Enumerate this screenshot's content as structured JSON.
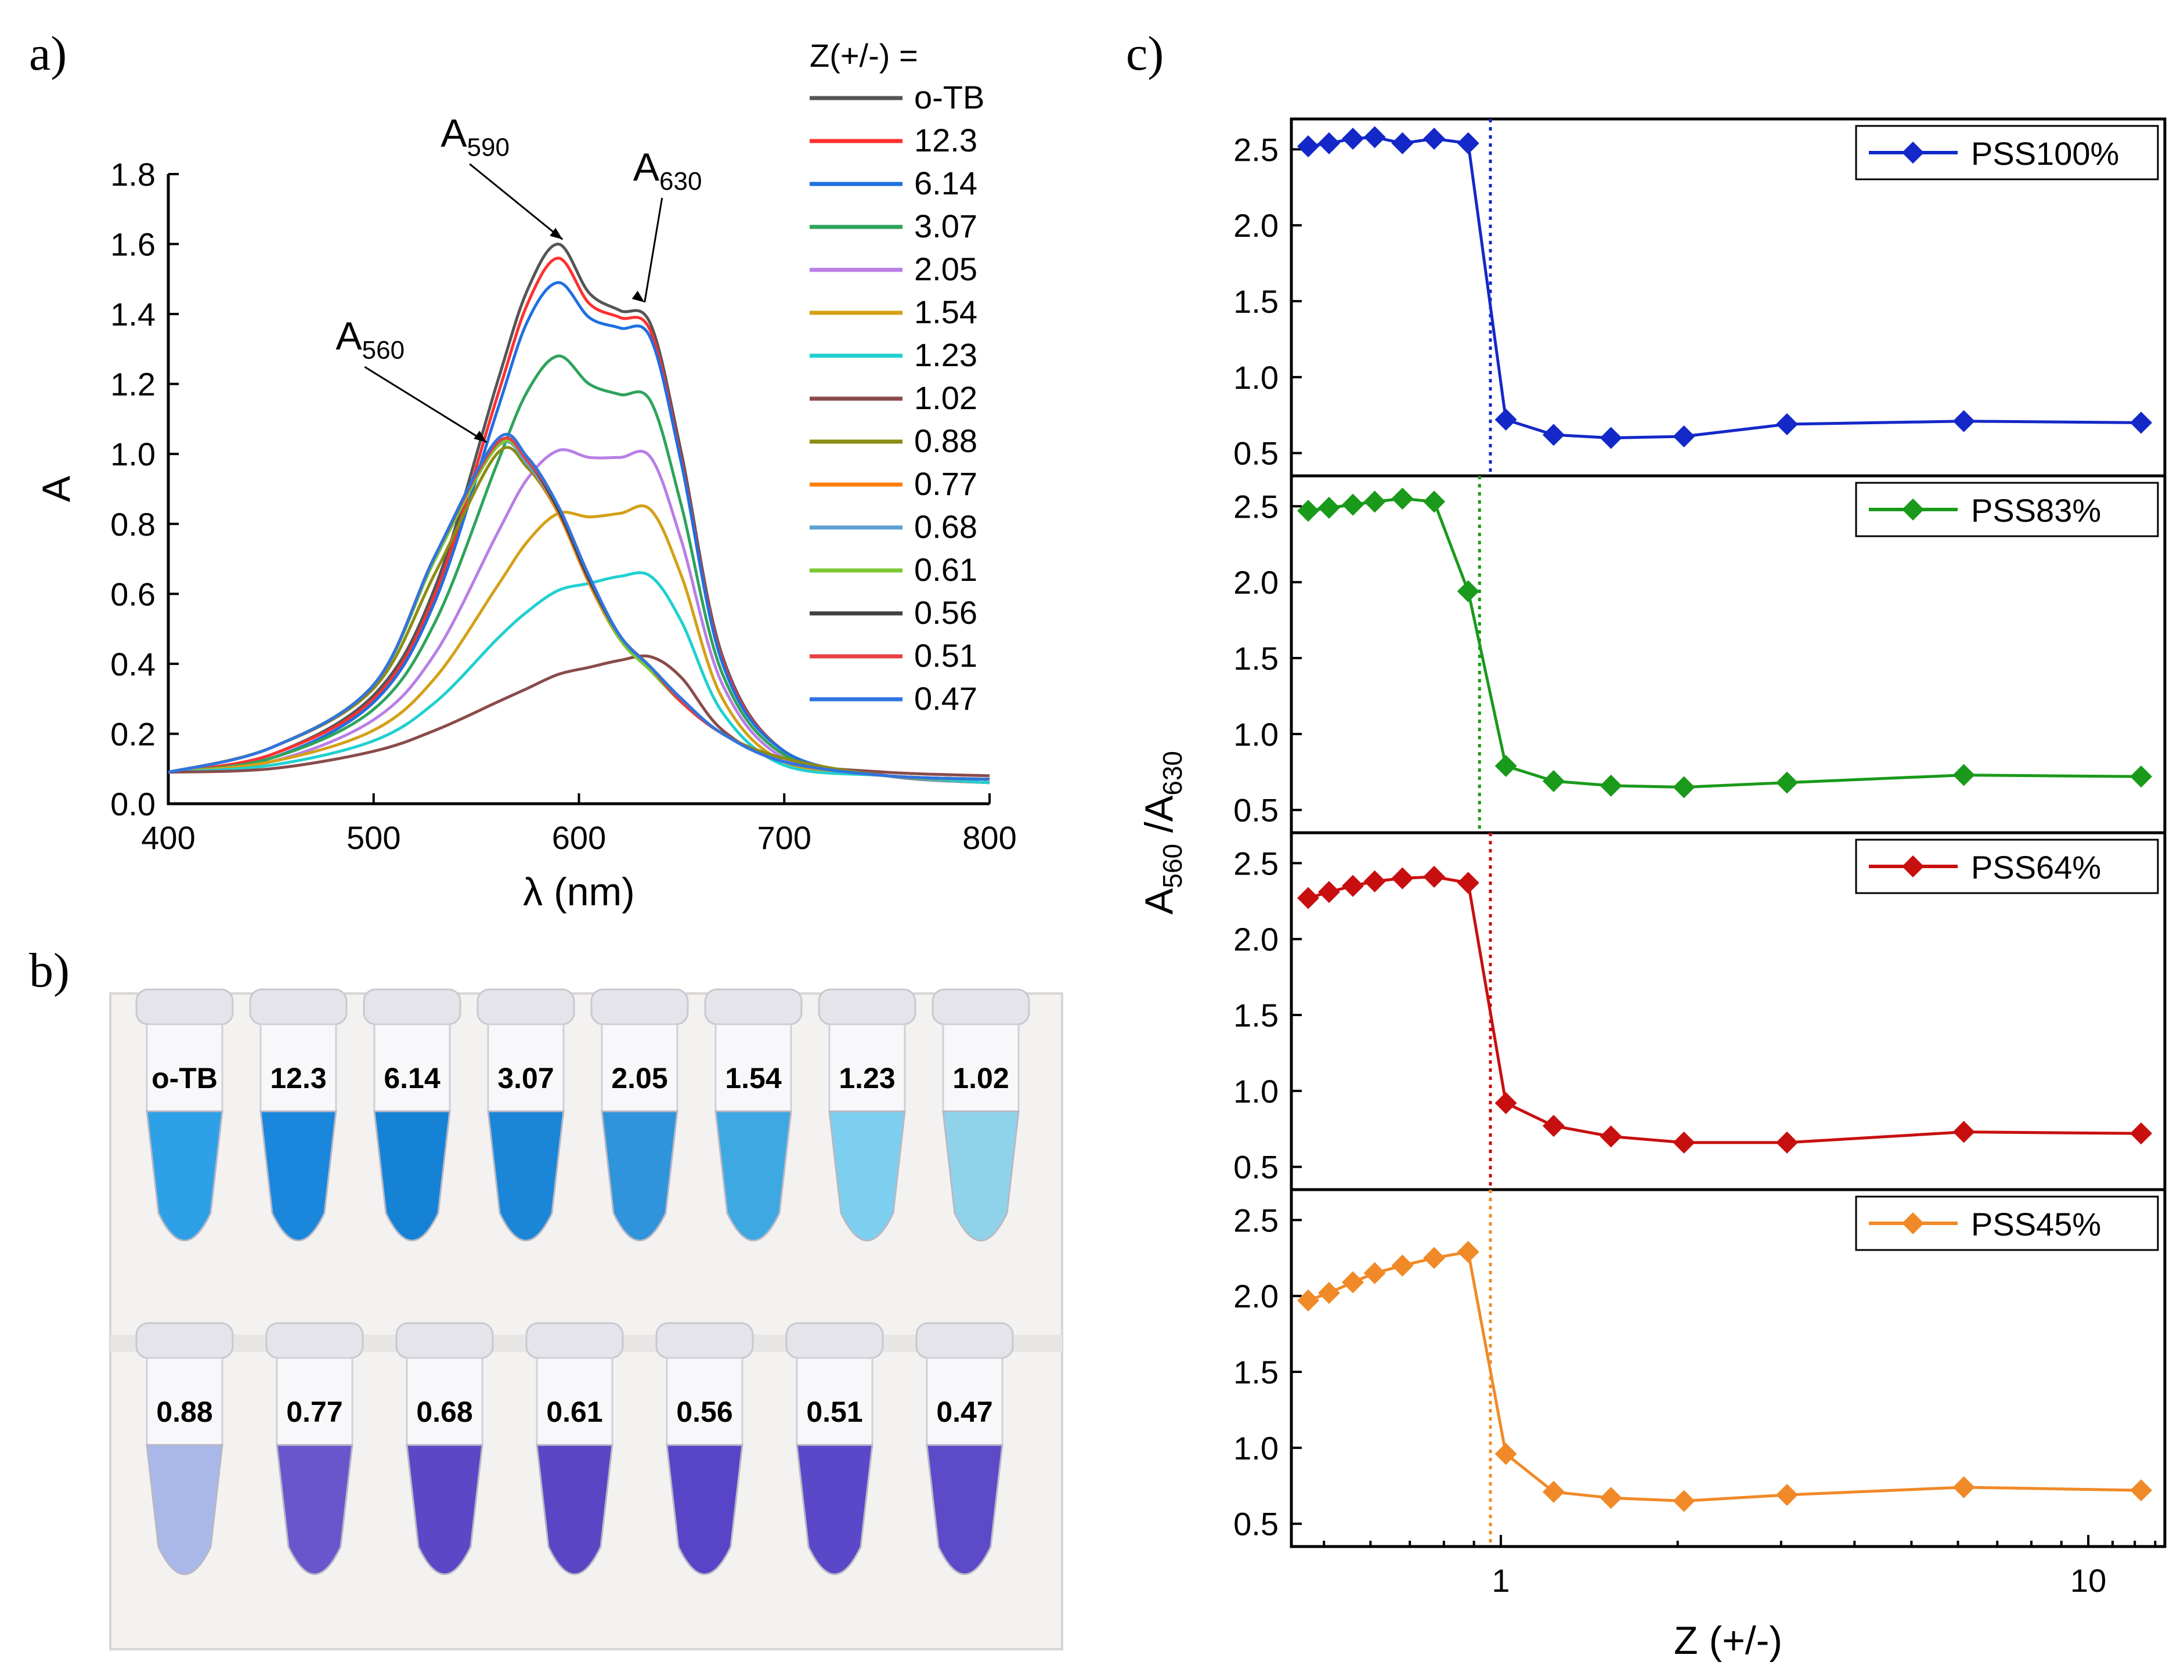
{
  "panel_labels": {
    "a": "a)",
    "b": "b)",
    "c": "c)"
  },
  "chart_data": [
    {
      "type": "line",
      "panel": "a",
      "title": "",
      "xlabel": "λ (nm)",
      "ylabel": "A",
      "xlim": [
        400,
        800
      ],
      "ylim": [
        0,
        1.8
      ],
      "xticks": [
        400,
        500,
        600,
        700,
        800
      ],
      "yticks": [
        0.0,
        0.2,
        0.4,
        0.6,
        0.8,
        1.0,
        1.2,
        1.4,
        1.6,
        1.8
      ],
      "legend_title": "Z(+/-) =",
      "legend_position": "top-right",
      "annotations": [
        {
          "base": "A",
          "sub": "590",
          "at": [
            592,
            1.6
          ]
        },
        {
          "base": "A",
          "sub": "630",
          "at": [
            632,
            1.42
          ]
        },
        {
          "base": "A",
          "sub": "560",
          "at": [
            555,
            1.02
          ]
        }
      ],
      "x": [
        400,
        450,
        500,
        530,
        560,
        575,
        590,
        605,
        620,
        635,
        650,
        670,
        700,
        750,
        800
      ],
      "series": [
        {
          "name": "o-TB",
          "color": "#555555",
          "values": [
            0.09,
            0.14,
            0.31,
            0.62,
            1.2,
            1.47,
            1.6,
            1.46,
            1.41,
            1.37,
            1.0,
            0.42,
            0.15,
            0.08,
            0.06
          ]
        },
        {
          "name": "12.3",
          "color": "#ff3030",
          "values": [
            0.09,
            0.14,
            0.3,
            0.6,
            1.16,
            1.43,
            1.56,
            1.43,
            1.39,
            1.35,
            0.98,
            0.41,
            0.15,
            0.08,
            0.06
          ]
        },
        {
          "name": "6.14",
          "color": "#1f6fe0",
          "values": [
            0.09,
            0.13,
            0.29,
            0.58,
            1.12,
            1.38,
            1.49,
            1.39,
            1.36,
            1.33,
            0.97,
            0.4,
            0.15,
            0.08,
            0.06
          ]
        },
        {
          "name": "3.07",
          "color": "#2ea35c",
          "values": [
            0.09,
            0.13,
            0.27,
            0.52,
            0.97,
            1.18,
            1.28,
            1.2,
            1.17,
            1.15,
            0.85,
            0.37,
            0.14,
            0.08,
            0.06
          ]
        },
        {
          "name": "2.05",
          "color": "#b87ee6",
          "values": [
            0.09,
            0.12,
            0.24,
            0.43,
            0.77,
            0.93,
            1.01,
            0.99,
            0.99,
            0.99,
            0.75,
            0.34,
            0.13,
            0.08,
            0.06
          ]
        },
        {
          "name": "1.54",
          "color": "#d4a017",
          "values": [
            0.09,
            0.12,
            0.21,
            0.36,
            0.62,
            0.75,
            0.83,
            0.82,
            0.83,
            0.84,
            0.65,
            0.3,
            0.12,
            0.08,
            0.06
          ]
        },
        {
          "name": "1.23",
          "color": "#20d0d0",
          "values": [
            0.09,
            0.11,
            0.18,
            0.29,
            0.47,
            0.55,
            0.61,
            0.63,
            0.65,
            0.65,
            0.52,
            0.26,
            0.11,
            0.08,
            0.06
          ]
        },
        {
          "name": "1.02",
          "color": "#8a4b4b",
          "values": [
            0.09,
            0.1,
            0.15,
            0.21,
            0.29,
            0.33,
            0.37,
            0.39,
            0.41,
            0.42,
            0.36,
            0.21,
            0.12,
            0.09,
            0.08
          ]
        },
        {
          "name": "0.88",
          "color": "#8c8c14",
          "values": [
            0.09,
            0.16,
            0.33,
            0.66,
            1.0,
            0.96,
            0.83,
            0.63,
            0.47,
            0.39,
            0.3,
            0.2,
            0.13,
            0.08,
            0.07
          ]
        },
        {
          "name": "0.77",
          "color": "#ff7f0e",
          "values": [
            0.09,
            0.16,
            0.34,
            0.7,
            1.02,
            0.97,
            0.83,
            0.63,
            0.47,
            0.38,
            0.29,
            0.2,
            0.12,
            0.08,
            0.07
          ]
        },
        {
          "name": "0.68",
          "color": "#5fa0d0",
          "values": [
            0.09,
            0.16,
            0.34,
            0.7,
            1.02,
            0.97,
            0.84,
            0.64,
            0.47,
            0.38,
            0.29,
            0.2,
            0.12,
            0.08,
            0.07
          ]
        },
        {
          "name": "0.61",
          "color": "#7cc832",
          "values": [
            0.09,
            0.16,
            0.34,
            0.7,
            1.02,
            0.98,
            0.84,
            0.64,
            0.47,
            0.38,
            0.29,
            0.2,
            0.12,
            0.08,
            0.07
          ]
        },
        {
          "name": "0.56",
          "color": "#404040",
          "values": [
            0.09,
            0.16,
            0.34,
            0.71,
            1.03,
            0.98,
            0.84,
            0.64,
            0.48,
            0.39,
            0.29,
            0.2,
            0.12,
            0.08,
            0.07
          ]
        },
        {
          "name": "0.51",
          "color": "#e84040",
          "values": [
            0.09,
            0.16,
            0.34,
            0.71,
            1.03,
            0.98,
            0.85,
            0.65,
            0.48,
            0.39,
            0.29,
            0.2,
            0.12,
            0.08,
            0.07
          ]
        },
        {
          "name": "0.47",
          "color": "#2f75e0",
          "values": [
            0.09,
            0.16,
            0.34,
            0.71,
            1.04,
            0.99,
            0.85,
            0.65,
            0.48,
            0.39,
            0.3,
            0.2,
            0.12,
            0.08,
            0.07
          ]
        }
      ]
    },
    {
      "type": "line",
      "panel": "c",
      "title": "",
      "xlabel": "Z (+/-)",
      "ylabel": {
        "parts": [
          "A",
          "560",
          " /A",
          "630"
        ]
      },
      "xscale": "log",
      "xlim": [
        0.44,
        13.5
      ],
      "xticks": [
        1,
        10
      ],
      "ylim": [
        0.35,
        2.7
      ],
      "yticks": [
        0.5,
        1.0,
        1.5,
        2.0,
        2.5
      ],
      "legend_position": "top-right",
      "x": [
        0.47,
        0.51,
        0.56,
        0.61,
        0.68,
        0.77,
        0.88,
        1.02,
        1.23,
        1.54,
        2.05,
        3.07,
        6.14,
        12.3
      ],
      "subplots": [
        {
          "name": "PSS100%",
          "color": "#1428c8",
          "vline": 0.96,
          "values": [
            2.52,
            2.54,
            2.57,
            2.58,
            2.54,
            2.57,
            2.54,
            0.72,
            0.62,
            0.6,
            0.61,
            0.69,
            0.71,
            0.7
          ]
        },
        {
          "name": "PSS83%",
          "color": "#1a9a1a",
          "vline": 0.92,
          "values": [
            2.47,
            2.49,
            2.51,
            2.53,
            2.55,
            2.53,
            1.94,
            0.79,
            0.69,
            0.66,
            0.65,
            0.68,
            0.73,
            0.72
          ]
        },
        {
          "name": "PSS64%",
          "color": "#c80f0f",
          "vline": 0.96,
          "values": [
            2.27,
            2.31,
            2.35,
            2.38,
            2.4,
            2.41,
            2.37,
            0.92,
            0.77,
            0.7,
            0.66,
            0.66,
            0.73,
            0.72
          ]
        },
        {
          "name": "PSS45%",
          "color": "#f08a28",
          "vline": 0.96,
          "values": [
            1.97,
            2.02,
            2.09,
            2.15,
            2.2,
            2.25,
            2.29,
            0.96,
            0.71,
            0.67,
            0.65,
            0.69,
            0.74,
            0.72
          ]
        }
      ]
    }
  ],
  "photo": {
    "top_labels": [
      "o-TB",
      "12.3",
      "6.14",
      "3.07",
      "2.05",
      "1.54",
      "1.23",
      "1.02"
    ],
    "top_colors": [
      "#2ea0e8",
      "#1a86dc",
      "#1682d6",
      "#1b86d8",
      "#2f94dc",
      "#3da8e2",
      "#7ccfee",
      "#8fd3ea"
    ],
    "bottom_labels": [
      "0.88",
      "0.77",
      "0.68",
      "0.61",
      "0.56",
      "0.51",
      "0.47"
    ],
    "bottom_colors": [
      "#a9b8e8",
      "#6a56cc",
      "#5c48c6",
      "#5a46c4",
      "#5844c6",
      "#5a48c8",
      "#5c4ac8"
    ]
  }
}
